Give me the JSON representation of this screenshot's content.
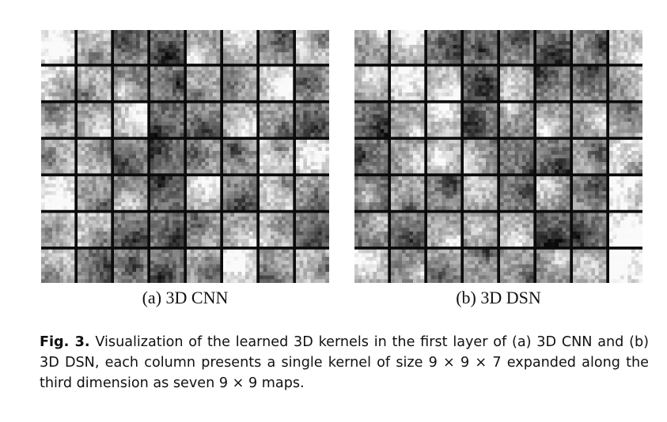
{
  "panels": [
    {
      "id": "a",
      "label": "(a) 3D CNN",
      "rows": 7,
      "cols": 8
    },
    {
      "id": "b",
      "label": "(b) 3D DSN",
      "rows": 7,
      "cols": 8
    }
  ],
  "caption": {
    "figref": "Fig. 3.",
    "text": "Visualization of the learned 3D kernels in the first layer of (a) 3D CNN and (b) 3D DSN, each column presents a single kernel of size 9 × 9 × 7 expanded along the third dimension as seven 9 × 9 maps."
  },
  "colors": {
    "background": "#ffffff",
    "grid_line": "#0b0b0b",
    "text": "#111111"
  }
}
